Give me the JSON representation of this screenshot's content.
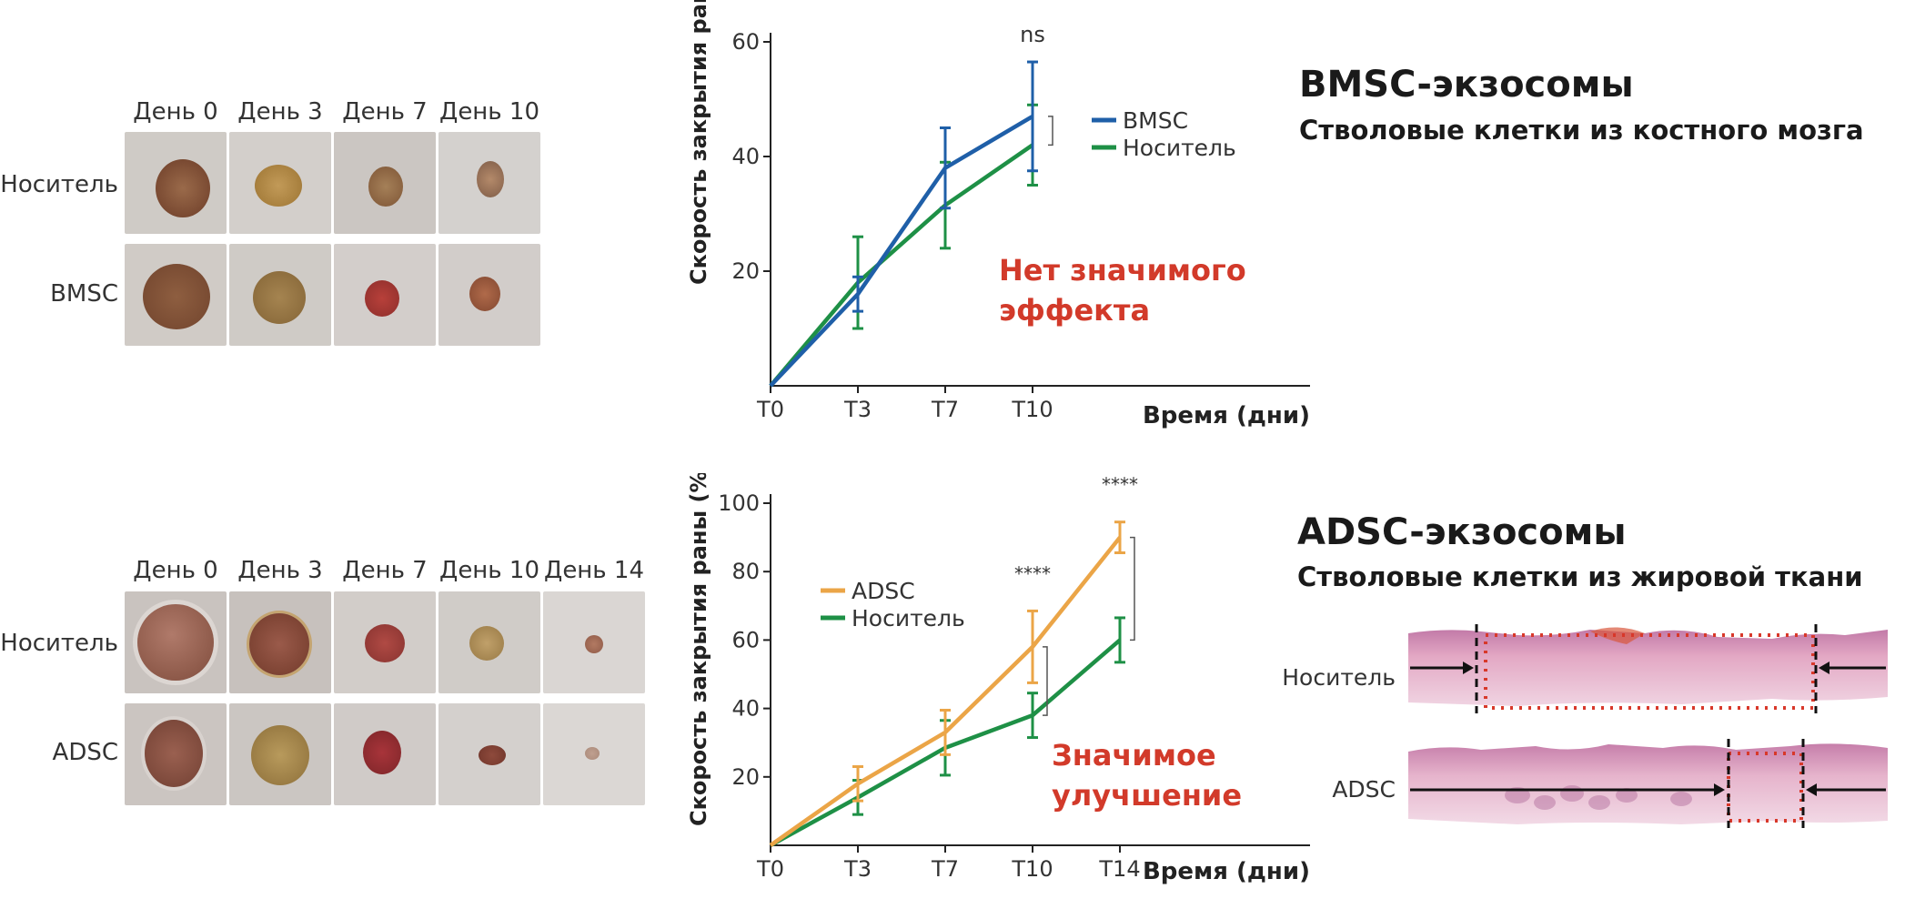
{
  "top": {
    "title": "BMSC-экзосомы",
    "subtitle": "Стволовые клетки из костного мозга",
    "note_line1": "Нет значимого",
    "note_line2": "эффекта",
    "day_labels": [
      "День 0",
      "День 3",
      "День 7",
      "День 10"
    ],
    "row_labels": [
      "Носитель",
      "BMSC"
    ]
  },
  "bottom": {
    "title": "ADSC-экзосомы",
    "subtitle": "Стволовые клетки из жировой ткани",
    "note_line1": "Значимое",
    "note_line2": "улучшение",
    "day_labels": [
      "День 0",
      "День 3",
      "День 7",
      "День 10",
      "День 14"
    ],
    "row_labels": [
      "Носитель",
      "ADSC"
    ],
    "histology_labels": [
      "Носитель",
      "ADSC"
    ]
  },
  "colors": {
    "bmsc": "#1f5fa8",
    "vehicle": "#1e9046",
    "adsc": "#eba547",
    "note": "#d23a2a"
  },
  "chart_data": [
    {
      "type": "line",
      "ylabel": "Скорость закрытия раны (%)",
      "xlabel": "Время (дни)",
      "categories": [
        "T0",
        "T3",
        "T7",
        "T10"
      ],
      "ylim": [
        0,
        60
      ],
      "yticks": [
        20,
        40,
        60
      ],
      "series": [
        {
          "name": "BMSC",
          "color": "#1f5fa8",
          "values": [
            0,
            16,
            38,
            47
          ],
          "errors": [
            0,
            3,
            7,
            9.5
          ]
        },
        {
          "name": "Носитель",
          "color": "#1e9046",
          "values": [
            0,
            18,
            31.5,
            42
          ],
          "errors": [
            0,
            8,
            7.5,
            7
          ]
        }
      ],
      "significance": [
        {
          "category": "T10",
          "label": "ns"
        }
      ],
      "legend": "top-right"
    },
    {
      "type": "line",
      "ylabel": "Скорость закрытия раны (%)",
      "xlabel": "Время (дни)",
      "categories": [
        "T0",
        "T3",
        "T7",
        "T10",
        "T14"
      ],
      "ylim": [
        0,
        100
      ],
      "yticks": [
        20,
        40,
        60,
        80,
        100
      ],
      "series": [
        {
          "name": "ADSC",
          "color": "#eba547",
          "values": [
            0,
            18,
            33,
            58,
            90
          ],
          "errors": [
            0,
            5,
            6.5,
            10.5,
            4.5
          ]
        },
        {
          "name": "Носитель",
          "color": "#1e9046",
          "values": [
            0,
            14,
            28.5,
            38,
            60
          ],
          "errors": [
            0,
            5,
            8,
            6.5,
            6.5
          ]
        }
      ],
      "significance": [
        {
          "category": "T10",
          "label": "****"
        },
        {
          "category": "T14",
          "label": "****"
        }
      ],
      "legend": "top-left"
    }
  ]
}
